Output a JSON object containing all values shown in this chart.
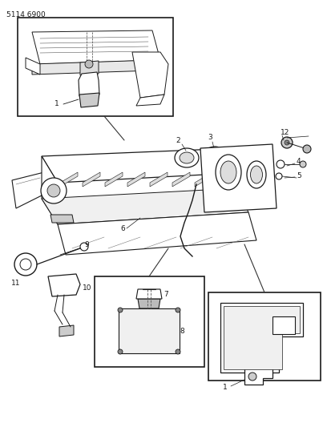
{
  "title_code": "5114 6900",
  "background_color": "#ffffff",
  "line_color": "#1a1a1a",
  "fig_width": 4.08,
  "fig_height": 5.33,
  "dpi": 100
}
